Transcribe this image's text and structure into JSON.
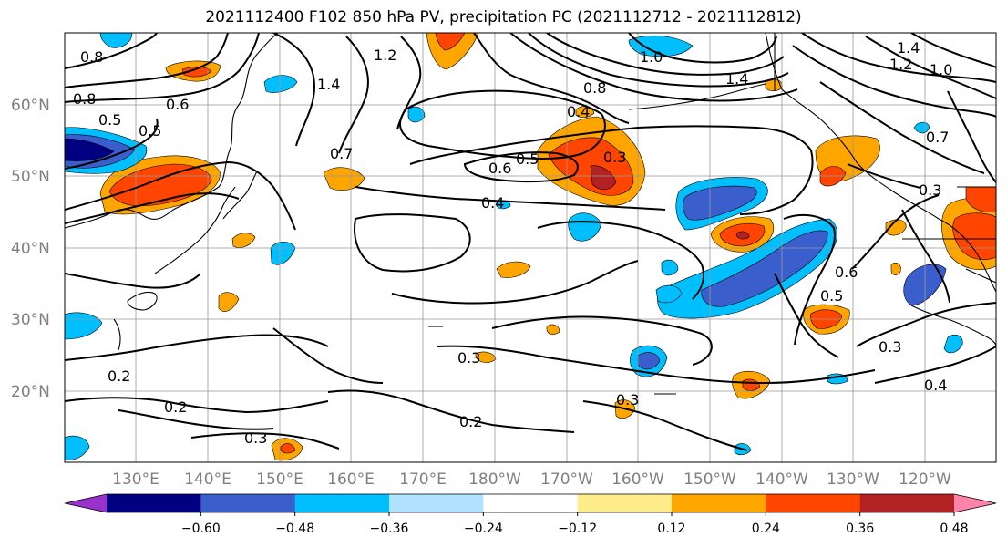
{
  "title": "2021112400 F102 850 hPa PV, precipitation PC (2021112712 - 2021112812)",
  "map": {
    "lat_labels": [
      "60°N",
      "50°N",
      "40°N",
      "30°N",
      "20°N"
    ],
    "lon_labels": [
      "130°E",
      "140°E",
      "150°E",
      "160°E",
      "170°E",
      "180°W",
      "170°W",
      "160°W",
      "150°W",
      "140°W",
      "130°W",
      "120°W"
    ],
    "contour_labels": [
      "0.8",
      "0.8",
      "0.5",
      "0.5",
      "0.6",
      "1.2",
      "1.4",
      "1.0",
      "0.8",
      "0.4",
      "0.3",
      "0.5",
      "0.6",
      "0.4",
      "0.7",
      "1.4",
      "1.2",
      "1.0",
      "0.7",
      "1.4",
      "0.5",
      "0.6",
      "0.3",
      "0.4",
      "0.3",
      "0.2",
      "0.2",
      "0.2",
      "0.3",
      "0.3",
      "0.3"
    ]
  },
  "colorbar": {
    "tick_labels": [
      "−0.60",
      "−0.48",
      "−0.36",
      "−0.24",
      "−0.12",
      "0.12",
      "0.24",
      "0.36",
      "0.48",
      "0.60"
    ],
    "colors": [
      "#9932CC",
      "#000080",
      "#3A5FCD",
      "#00BFFF",
      "#B0E2FF",
      "#FFFFFF",
      "#FFEC8B",
      "#FFA500",
      "#FF4500",
      "#B22222",
      "#FF82AB"
    ]
  }
}
